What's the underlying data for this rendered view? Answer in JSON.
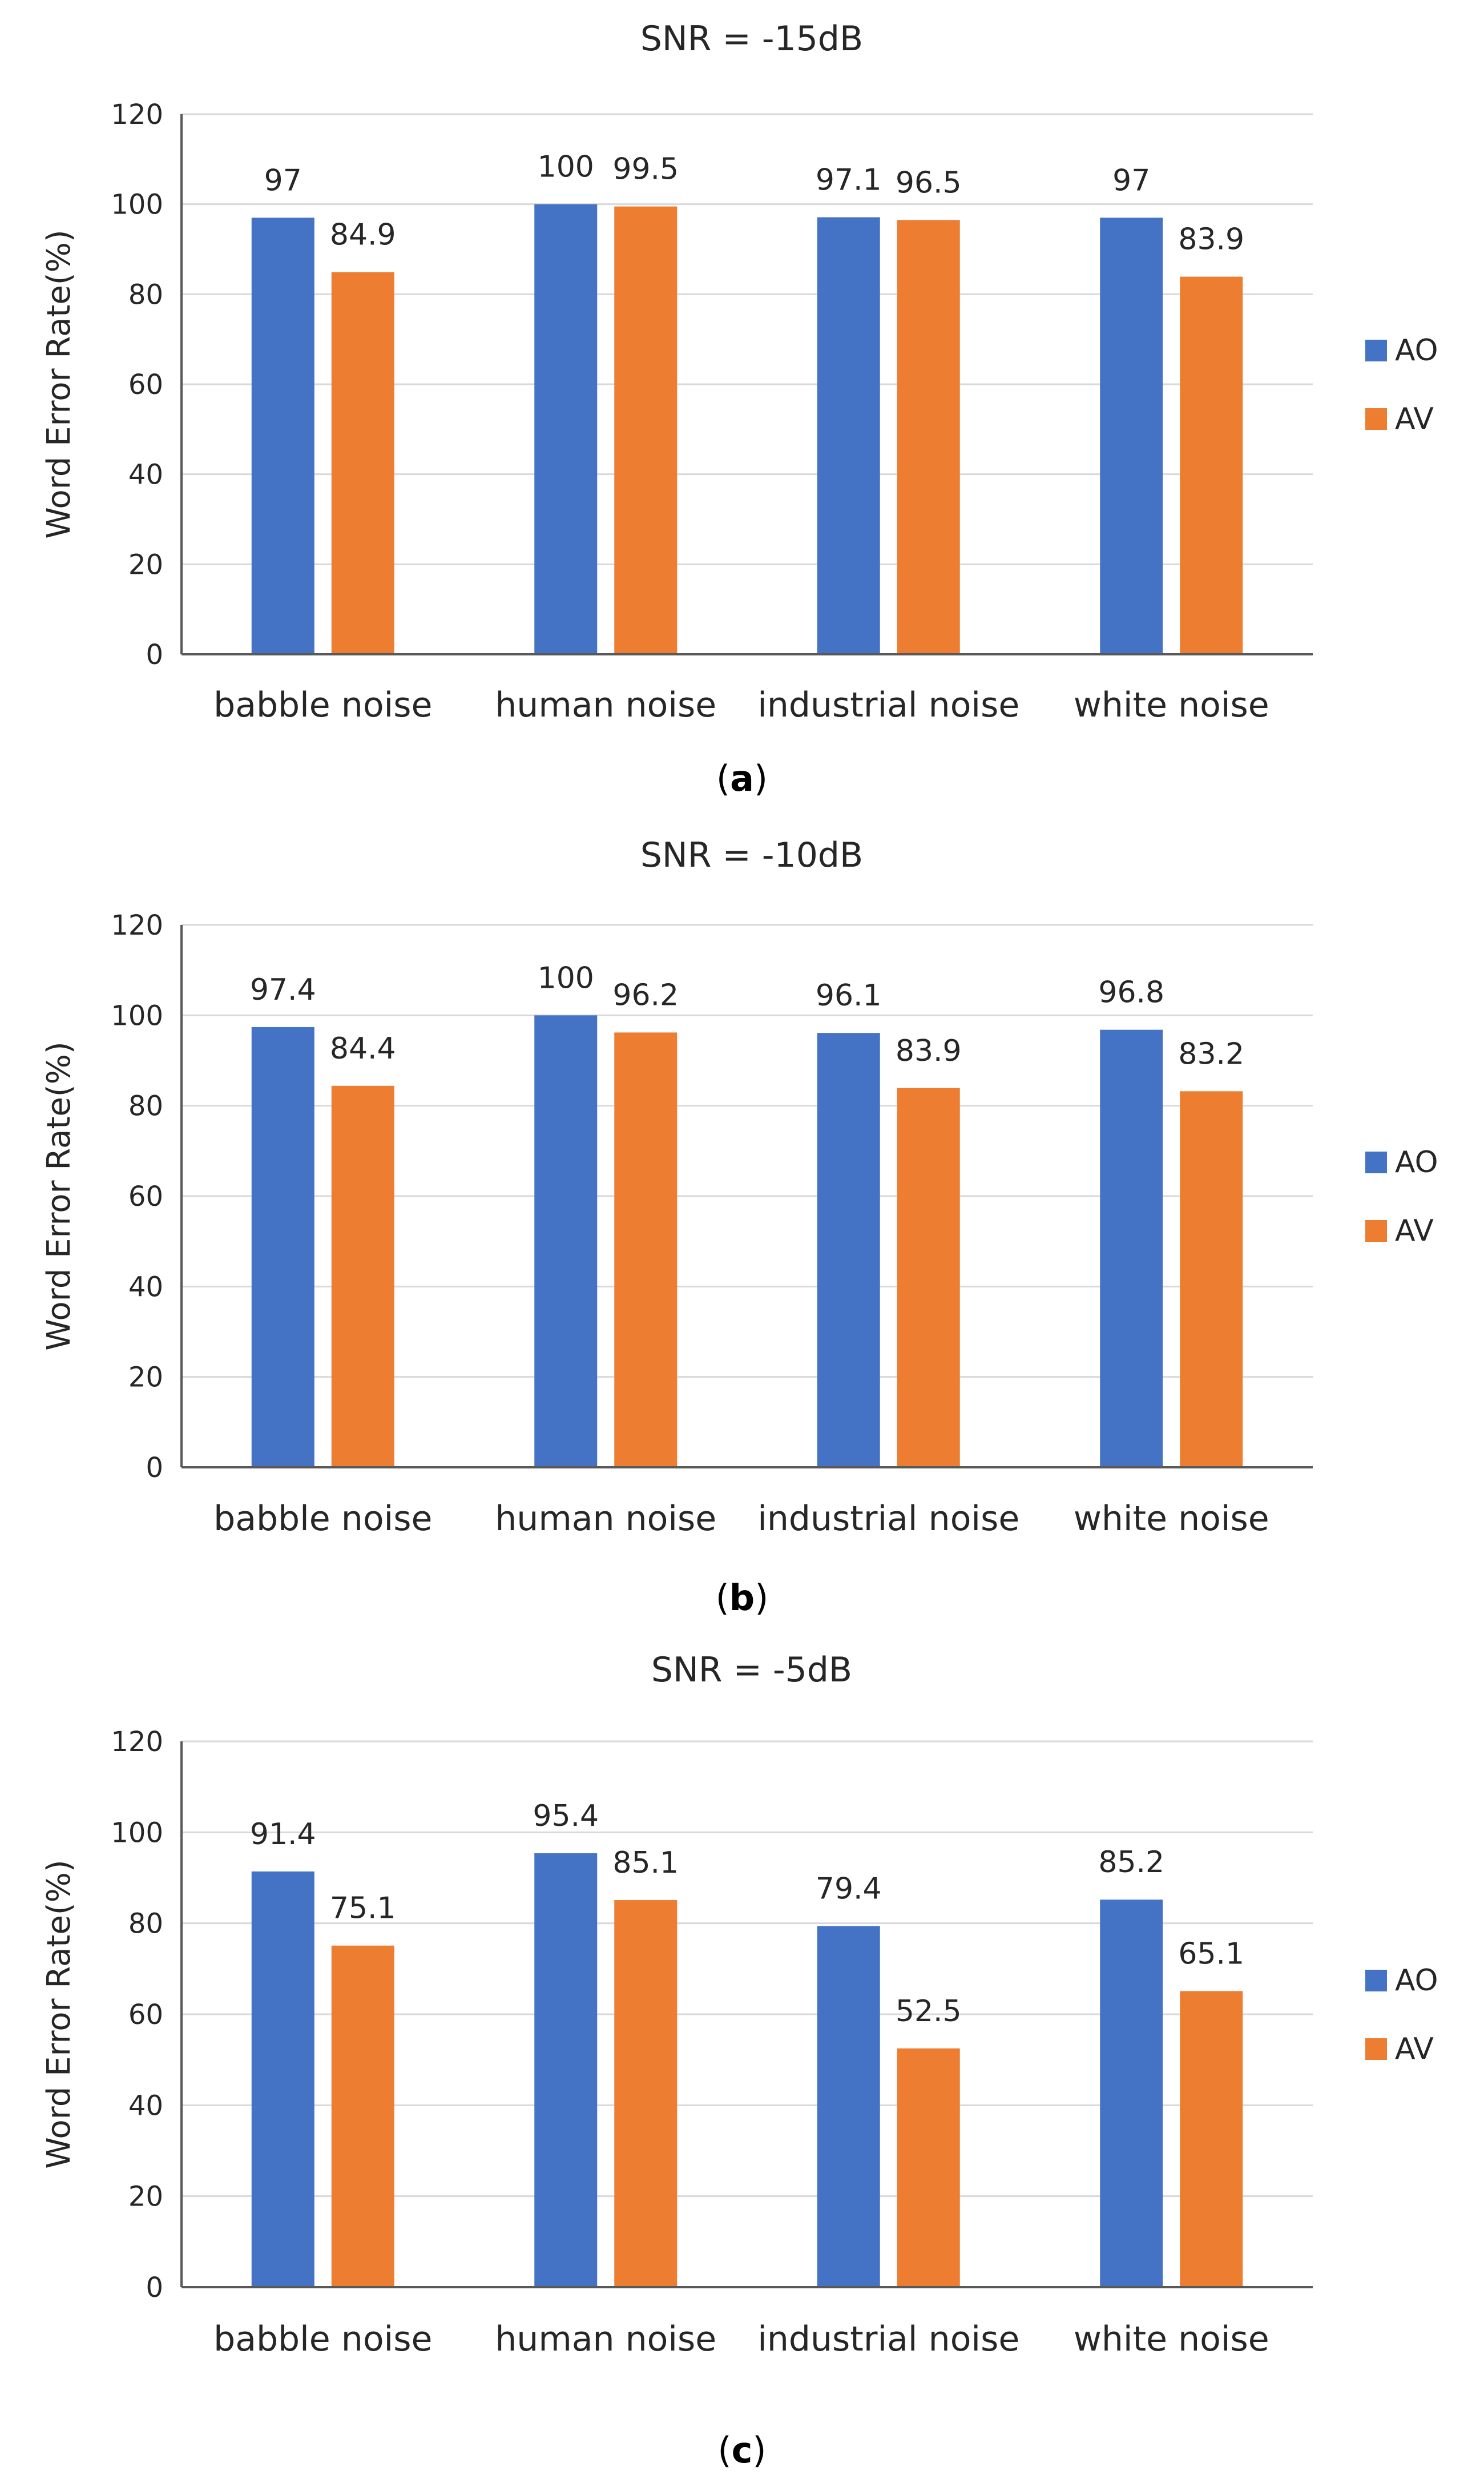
{
  "colors": {
    "ao": "#4472C4",
    "av": "#ED7D31",
    "grid": "#D9D9D9",
    "axis": "#595959",
    "text": "#262626"
  },
  "chart_data": [
    {
      "type": "bar",
      "panel_label": "a",
      "title": "SNR = -15dB",
      "xlabel": "",
      "ylabel": "Word  Error  Rate(%)",
      "ylim": [
        0,
        120
      ],
      "yticks": [
        "0",
        "20",
        "40",
        "60",
        "80",
        "100",
        "120"
      ],
      "grid": true,
      "legend_position": "right",
      "categories": [
        "babble noise",
        "human noise",
        "industrial noise",
        "white noise"
      ],
      "series": [
        {
          "name": "AO",
          "values": [
            97,
            100,
            97.1,
            97
          ],
          "labels": [
            "97",
            "100",
            "97.1",
            "97"
          ]
        },
        {
          "name": "AV",
          "values": [
            84.9,
            99.5,
            96.5,
            83.9
          ],
          "labels": [
            "84.9",
            "99.5",
            "96.5",
            "83.9"
          ]
        }
      ]
    },
    {
      "type": "bar",
      "panel_label": "b",
      "title": "SNR = -10dB",
      "xlabel": "",
      "ylabel": "Word  Error  Rate(%)",
      "ylim": [
        0,
        120
      ],
      "yticks": [
        "0",
        "20",
        "40",
        "60",
        "80",
        "100",
        "120"
      ],
      "grid": true,
      "legend_position": "right",
      "categories": [
        "babble noise",
        "human noise",
        "industrial noise",
        "white noise"
      ],
      "series": [
        {
          "name": "AO",
          "values": [
            97.4,
            100,
            96.1,
            96.8
          ],
          "labels": [
            "97.4",
            "100",
            "96.1",
            "96.8"
          ]
        },
        {
          "name": "AV",
          "values": [
            84.4,
            96.2,
            83.9,
            83.2
          ],
          "labels": [
            "84.4",
            "96.2",
            "83.9",
            "83.2"
          ]
        }
      ]
    },
    {
      "type": "bar",
      "panel_label": "c",
      "title": "SNR = -5dB",
      "xlabel": "",
      "ylabel": "Word  Error  Rate(%)",
      "ylim": [
        0,
        120
      ],
      "yticks": [
        "0",
        "20",
        "40",
        "60",
        "80",
        "100",
        "120"
      ],
      "grid": true,
      "legend_position": "right",
      "categories": [
        "babble noise",
        "human noise",
        "industrial noise",
        "white noise"
      ],
      "series": [
        {
          "name": "AO",
          "values": [
            91.4,
            95.4,
            79.4,
            85.2
          ],
          "labels": [
            "91.4",
            "95.4",
            "79.4",
            "85.2"
          ]
        },
        {
          "name": "AV",
          "values": [
            75.1,
            85.1,
            52.5,
            65.1
          ],
          "labels": [
            "75.1",
            "85.1",
            "52.5",
            "65.1"
          ]
        }
      ]
    }
  ]
}
